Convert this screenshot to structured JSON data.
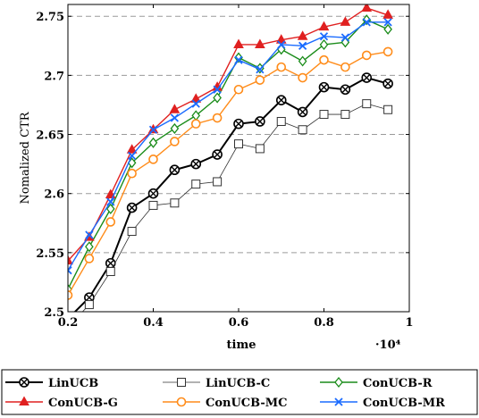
{
  "chart_data": {
    "type": "line",
    "xlabel": "time",
    "ylabel": "Nomalized CTR",
    "x_multiplier_label": "·10⁴",
    "xlim": [
      0.2,
      1.0
    ],
    "ylim": [
      2.5,
      2.76
    ],
    "x_ticks": [
      "0.2",
      "0.4",
      "0.6",
      "0.8",
      "1"
    ],
    "y_ticks": [
      "2.5",
      "2.55",
      "2.6",
      "2.65",
      "2.7",
      "2.75"
    ],
    "x_tick_values": [
      0.2,
      0.4,
      0.6,
      0.8,
      1.0
    ],
    "y_tick_values": [
      2.5,
      2.55,
      2.6,
      2.65,
      2.7,
      2.75
    ],
    "grid": "horizontal dashed",
    "legend_position": "bottom",
    "x": [
      0.2,
      0.25,
      0.3,
      0.35,
      0.4,
      0.45,
      0.5,
      0.55,
      0.6,
      0.65,
      0.7,
      0.75,
      0.8,
      0.85,
      0.9,
      0.95
    ],
    "series": [
      {
        "name": "LinUCB",
        "color": "#000000",
        "marker": "circle-cross",
        "width": 2.0,
        "values": [
          2.494,
          2.512,
          2.541,
          2.588,
          2.6,
          2.62,
          2.625,
          2.633,
          2.659,
          2.661,
          2.679,
          2.669,
          2.69,
          2.688,
          2.698,
          2.693
        ]
      },
      {
        "name": "LinUCB-C",
        "color": "#333333",
        "marker": "square",
        "width": 0.8,
        "values": [
          2.487,
          2.506,
          2.534,
          2.568,
          2.59,
          2.592,
          2.608,
          2.61,
          2.642,
          2.638,
          2.661,
          2.654,
          2.667,
          2.667,
          2.676,
          2.671
        ]
      },
      {
        "name": "ConUCB-R",
        "color": "#1a8c1a",
        "marker": "diamond",
        "width": 1.4,
        "values": [
          2.519,
          2.555,
          2.587,
          2.626,
          2.643,
          2.655,
          2.666,
          2.681,
          2.715,
          2.706,
          2.722,
          2.712,
          2.726,
          2.728,
          2.747,
          2.739
        ]
      },
      {
        "name": "ConUCB-G",
        "color": "#e02020",
        "marker": "triangle",
        "width": 1.4,
        "values": [
          2.543,
          2.563,
          2.599,
          2.637,
          2.654,
          2.671,
          2.68,
          2.69,
          2.726,
          2.726,
          2.73,
          2.733,
          2.741,
          2.745,
          2.757,
          2.751
        ]
      },
      {
        "name": "ConUCB-MC",
        "color": "#ff8c1a",
        "marker": "circle",
        "width": 1.4,
        "values": [
          2.514,
          2.545,
          2.576,
          2.617,
          2.629,
          2.644,
          2.659,
          2.664,
          2.688,
          2.696,
          2.707,
          2.698,
          2.713,
          2.707,
          2.717,
          2.72
        ]
      },
      {
        "name": "ConUCB-MR",
        "color": "#1a6bff",
        "marker": "x",
        "width": 1.4,
        "values": [
          2.535,
          2.565,
          2.593,
          2.632,
          2.654,
          2.664,
          2.676,
          2.688,
          2.713,
          2.705,
          2.726,
          2.725,
          2.733,
          2.732,
          2.745,
          2.745
        ]
      }
    ]
  }
}
